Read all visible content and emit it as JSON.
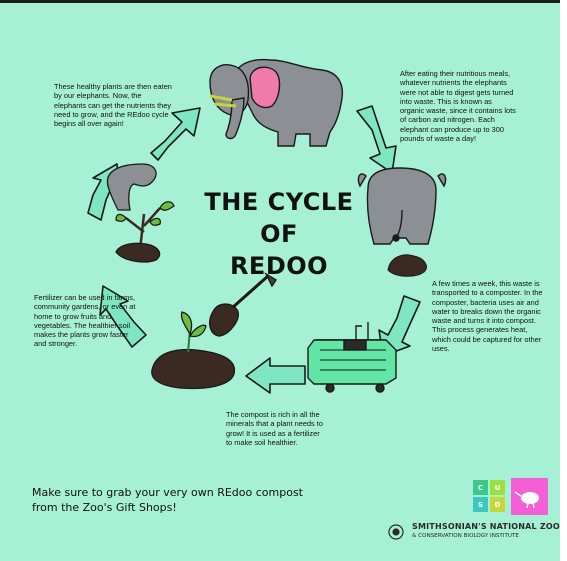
{
  "title": {
    "line1": "THE CYCLE",
    "line2": "OF",
    "line3": "REDOO"
  },
  "steps": {
    "elephant": "After eating their nutritious meals, whatever nutrients the elephants were not able to digest gets turned into waste. This is known as organic waste, since it contains lots of carbon and nitrogen. Each elephant can produce up to 300 pounds of waste a day!",
    "composter": "A few times a week, this waste is transported to a composter. In the composter, bacteria uses air and water to breaks down the organic waste and turns it into compost. This process generates heat, which could be captured for other uses.",
    "compost": "The compost is rich in all the minerals that a plant needs to grow! It is used as a fertilizer to make soil healthier.",
    "fertilizer": "Fertilizer can be used in farms, community gardens, or even at home to grow fruits and vegetables. The healthier soil makes the plants grow faster and stronger.",
    "plants": "These healthy plants are then eaten by our elephants. Now, the elephants can get the nutrients they need to grow, and the REdoo cycle begins all over again!"
  },
  "footer": {
    "message": "Make sure to grab your very own REdoo compost from the Zoo's Gift Shops!",
    "logo_line1": "SMITHSONIAN'S NATIONAL ZOO",
    "logo_line2": "& CONSERVATION BIOLOGY INSTITUTE",
    "cusd": [
      "C",
      "U",
      "S",
      "D"
    ]
  },
  "colors": {
    "background": "#a6f0d6",
    "arrow": "#7ee6c2",
    "elephant": "#8c8f94",
    "composter": "#62e6a5",
    "badge_pink": "#f45fd7"
  }
}
